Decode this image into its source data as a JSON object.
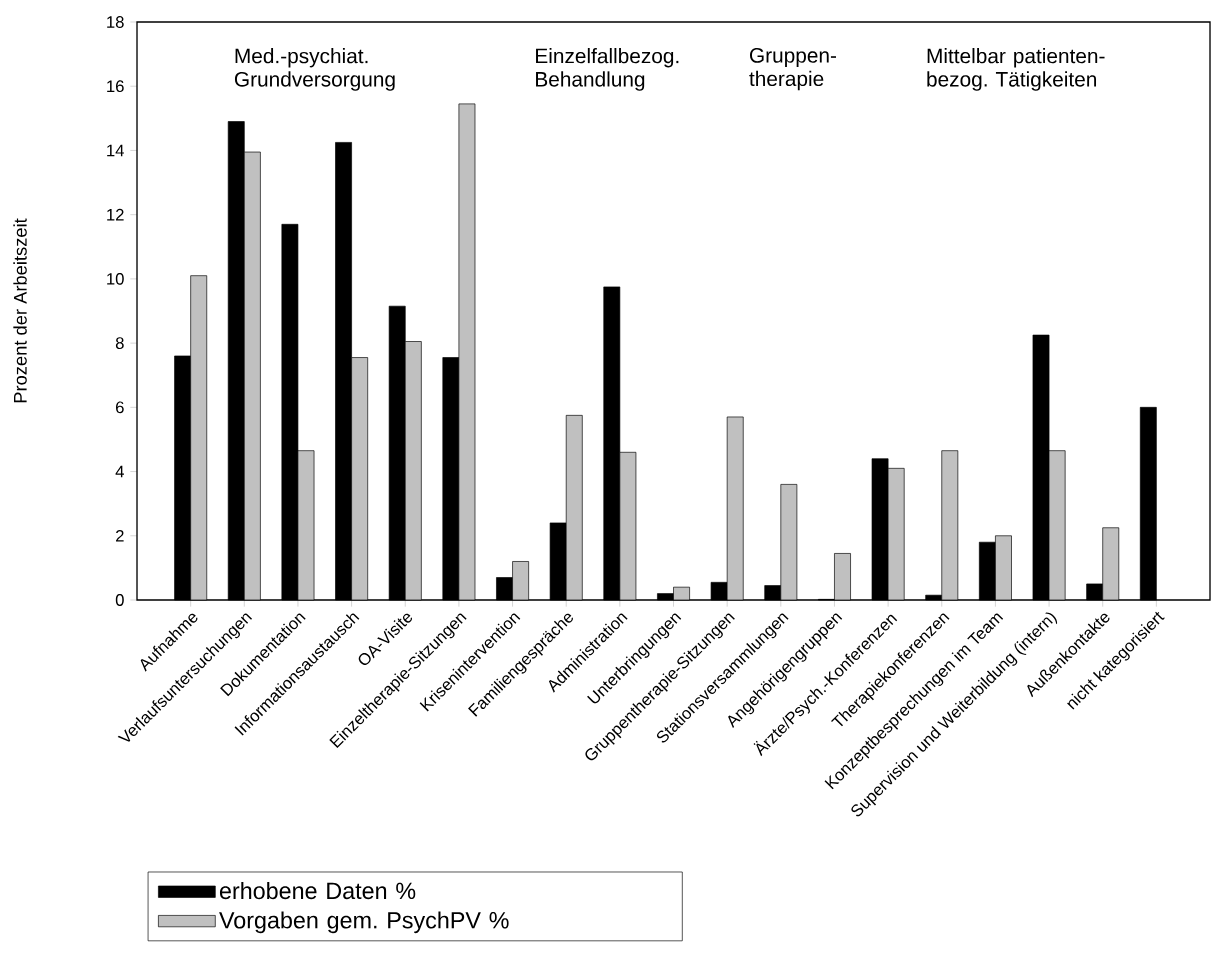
{
  "chart_data": {
    "type": "bar",
    "ylabel": "Prozent der Arbeitszeit",
    "categories": [
      "Aufnahme",
      "Verlaufsuntersuchungen",
      "Dokumentation",
      "Informationsaustausch",
      "OA-Visite",
      "Einzeltherapie-Sitzungen",
      "Krisenintervention",
      "Familiengespräche",
      "Administration",
      "Unterbringungen",
      "Gruppentherapie-Sitzungen",
      "Stationsversammlungen",
      "Angehörigengruppen",
      "Ärzte/Psych.-Konferenzen",
      "Therapiekonferenzen",
      "Konzeptbesprechungen im Team",
      "Supervision und Weiterbildung (intern)",
      "Außenkontakte",
      "nicht kategorisiert"
    ],
    "series": [
      {
        "name": "erhobene Daten %",
        "color": "#000000",
        "values": [
          7.6,
          14.9,
          11.7,
          14.25,
          9.15,
          7.55,
          0.7,
          2.4,
          9.75,
          0.2,
          0.55,
          0.45,
          0.02,
          4.4,
          0.15,
          1.8,
          8.25,
          0.5,
          6.0
        ]
      },
      {
        "name": "Vorgaben gem. PsychPV %",
        "color": "#c0c0c0",
        "values": [
          10.1,
          13.95,
          4.65,
          7.55,
          8.05,
          15.45,
          1.2,
          5.75,
          4.6,
          0.4,
          5.7,
          3.6,
          1.45,
          4.1,
          4.65,
          2.0,
          4.65,
          2.25,
          null
        ]
      }
    ],
    "ylim": [
      0,
      18
    ],
    "yticks": [
      0,
      2,
      4,
      6,
      8,
      10,
      12,
      14,
      16,
      18
    ],
    "legend": "bottom left",
    "annotations": [
      "Med.-psychiat. Grundversorgung",
      "Einzelfallbezog. Behandlung",
      "Gruppen-therapie",
      "Mittelbar patienten-bezog. Tätigkeiten"
    ]
  }
}
